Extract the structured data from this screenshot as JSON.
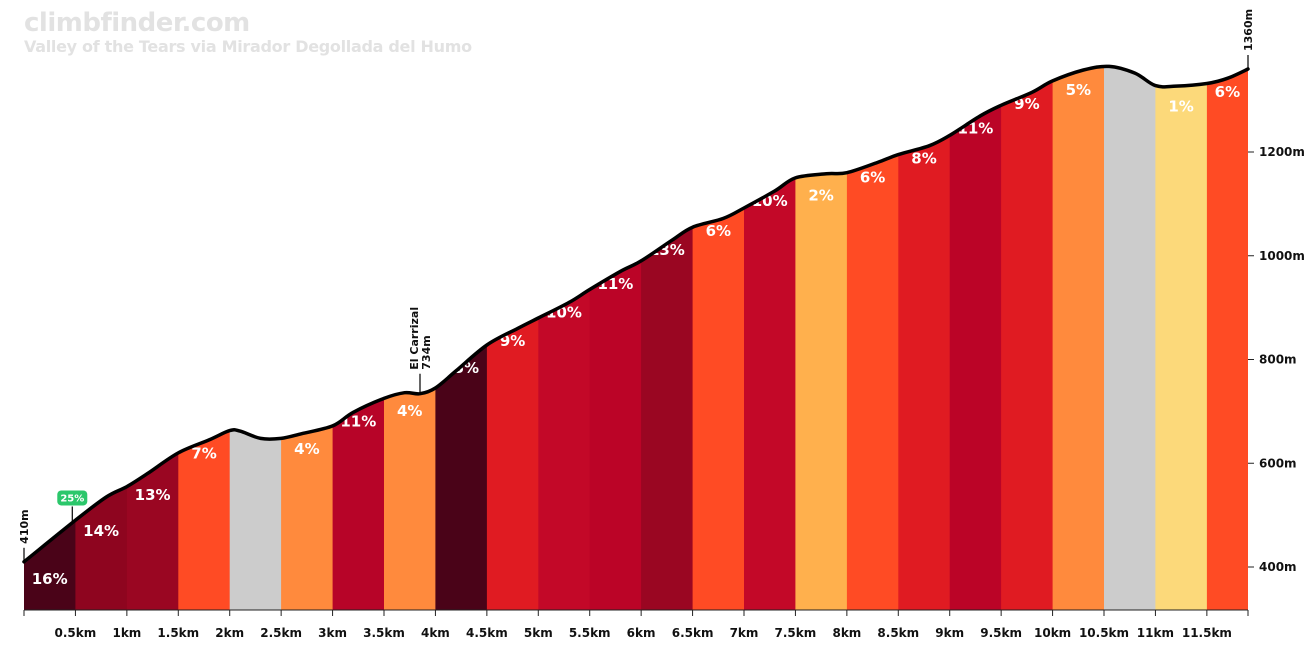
{
  "brand": "climbfinder.com",
  "subtitle": "Valley of the Tears via Mirador Degollada del Humo",
  "chart_data": {
    "type": "area",
    "title": "Valley of the Tears via Mirador Degollada del Humo",
    "xlabel": "",
    "ylabel": "",
    "x_unit": "km",
    "y_unit": "m",
    "xlim": [
      0,
      11.9
    ],
    "ylim": [
      310,
      1410
    ],
    "x_ticks": [
      "0.5km",
      "1km",
      "1.5km",
      "2km",
      "2.5km",
      "3km",
      "3.5km",
      "4km",
      "4.5km",
      "5km",
      "5.5km",
      "6km",
      "6.5km",
      "7km",
      "7.5km",
      "8km",
      "8.5km",
      "9km",
      "9.5km",
      "10km",
      "10.5km",
      "11km",
      "11.5km"
    ],
    "y_ticks": [
      "400m",
      "600m",
      "800m",
      "1000m",
      "1200m"
    ],
    "profile": [
      [
        0,
        410
      ],
      [
        0.5,
        490
      ],
      [
        0.8,
        535
      ],
      [
        1.0,
        555
      ],
      [
        1.2,
        580
      ],
      [
        1.5,
        620
      ],
      [
        1.8,
        645
      ],
      [
        2.0,
        663
      ],
      [
        2.1,
        662
      ],
      [
        2.3,
        648
      ],
      [
        2.5,
        648
      ],
      [
        2.7,
        657
      ],
      [
        3.0,
        672
      ],
      [
        3.2,
        698
      ],
      [
        3.5,
        725
      ],
      [
        3.7,
        736
      ],
      [
        3.85,
        734
      ],
      [
        4.0,
        745
      ],
      [
        4.2,
        778
      ],
      [
        4.5,
        828
      ],
      [
        4.8,
        860
      ],
      [
        5.0,
        880
      ],
      [
        5.3,
        910
      ],
      [
        5.5,
        935
      ],
      [
        5.8,
        970
      ],
      [
        6.0,
        990
      ],
      [
        6.3,
        1030
      ],
      [
        6.5,
        1055
      ],
      [
        6.8,
        1072
      ],
      [
        7.0,
        1092
      ],
      [
        7.3,
        1125
      ],
      [
        7.5,
        1150
      ],
      [
        7.8,
        1158
      ],
      [
        8.0,
        1160
      ],
      [
        8.3,
        1180
      ],
      [
        8.5,
        1195
      ],
      [
        8.8,
        1212
      ],
      [
        9.0,
        1232
      ],
      [
        9.3,
        1270
      ],
      [
        9.5,
        1290
      ],
      [
        9.8,
        1315
      ],
      [
        10.0,
        1337
      ],
      [
        10.3,
        1358
      ],
      [
        10.55,
        1365
      ],
      [
        10.8,
        1352
      ],
      [
        11.0,
        1328
      ],
      [
        11.2,
        1327
      ],
      [
        11.5,
        1332
      ],
      [
        11.7,
        1342
      ],
      [
        11.9,
        1360
      ]
    ],
    "segments": [
      {
        "start": 0.0,
        "end": 0.5,
        "grade": "16%",
        "color": "#4a0318"
      },
      {
        "start": 0.5,
        "end": 1.5,
        "grade": "14%",
        "color": "#8e051f"
      },
      {
        "start": 1.0,
        "end": 1.5,
        "grade": "13%",
        "color": "#9a0622"
      },
      {
        "start": 1.5,
        "end": 2.0,
        "grade": "7%",
        "color": "#ff4b24"
      },
      {
        "start": 2.0,
        "end": 2.5,
        "grade": "",
        "color": "#cccccc"
      },
      {
        "start": 2.5,
        "end": 3.0,
        "grade": "4%",
        "color": "#ff8a3d"
      },
      {
        "start": 3.0,
        "end": 3.5,
        "grade": "11%",
        "color": "#b70428"
      },
      {
        "start": 3.5,
        "end": 4.0,
        "grade": "4%",
        "color": "#ff8a3d"
      },
      {
        "start": 4.0,
        "end": 4.5,
        "grade": "15%",
        "color": "#4a0318"
      },
      {
        "start": 4.5,
        "end": 5.0,
        "grade": "9%",
        "color": "#e01b22"
      },
      {
        "start": 5.0,
        "end": 5.5,
        "grade": "10%",
        "color": "#c30828"
      },
      {
        "start": 5.5,
        "end": 6.0,
        "grade": "11%",
        "color": "#bb0427"
      },
      {
        "start": 6.0,
        "end": 6.5,
        "grade": "13%",
        "color": "#9a0622"
      },
      {
        "start": 6.5,
        "end": 7.0,
        "grade": "6%",
        "color": "#ff4b24"
      },
      {
        "start": 7.0,
        "end": 7.5,
        "grade": "10%",
        "color": "#c30828"
      },
      {
        "start": 7.5,
        "end": 8.0,
        "grade": "2%",
        "color": "#ffb04d"
      },
      {
        "start": 8.0,
        "end": 8.5,
        "grade": "6%",
        "color": "#ff4b24"
      },
      {
        "start": 8.5,
        "end": 9.0,
        "grade": "8%",
        "color": "#e01b22"
      },
      {
        "start": 9.0,
        "end": 9.5,
        "grade": "11%",
        "color": "#bb0427"
      },
      {
        "start": 9.5,
        "end": 10.0,
        "grade": "9%",
        "color": "#e01b22"
      },
      {
        "start": 10.0,
        "end": 10.5,
        "grade": "5%",
        "color": "#ff8a3d"
      },
      {
        "start": 10.5,
        "end": 11.0,
        "grade": "",
        "color": "#cccccc"
      },
      {
        "start": 11.0,
        "end": 11.5,
        "grade": "1%",
        "color": "#fcd97a"
      },
      {
        "start": 11.5,
        "end": 11.9,
        "grade": "6%",
        "color": "#ff4b24"
      }
    ],
    "annotations": {
      "start": {
        "x": 0,
        "elev": 410,
        "label": "410m"
      },
      "end": {
        "x": 11.9,
        "elev": 1360,
        "label": "1360m"
      },
      "poi": {
        "x": 3.85,
        "elev": 734,
        "name": "El Carrizal",
        "label": "734m"
      },
      "max_grade": {
        "x": 0.45,
        "label": "25%",
        "color": "#2bc76b"
      }
    }
  }
}
